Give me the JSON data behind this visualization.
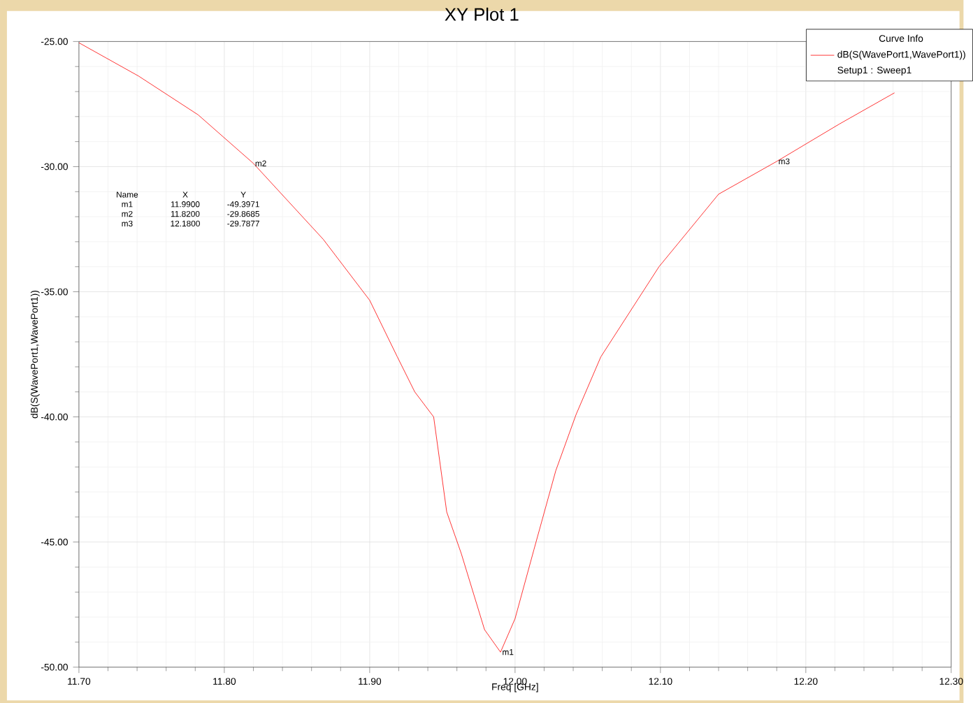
{
  "chart_data": {
    "type": "line",
    "title": "XY Plot 1",
    "xlabel": "Freq [GHz]",
    "ylabel": "dB(S(WavePort1,WavePort1))",
    "legend_title": "Curve Info",
    "series": [
      {
        "name": "dB(S(WavePort1,WavePort1))",
        "color": "#ff0000",
        "x": [
          11.7,
          11.741,
          11.782,
          11.82,
          11.868,
          11.9,
          11.919,
          11.931,
          11.944,
          11.953,
          11.963,
          11.979,
          11.99,
          12.0,
          12.013,
          12.028,
          12.042,
          12.059,
          12.099,
          12.14,
          12.18,
          12.223,
          12.261
        ],
        "values": [
          -25.05,
          -26.38,
          -27.93,
          -29.87,
          -32.9,
          -35.34,
          -37.6,
          -39.0,
          -40.0,
          -43.8,
          -45.46,
          -48.5,
          -49.4,
          -48.06,
          -45.3,
          -42.15,
          -39.9,
          -37.6,
          -34.0,
          -31.1,
          -29.79,
          -28.3,
          -27.05
        ]
      }
    ],
    "xlim": [
      11.7,
      12.3
    ],
    "ylim": [
      -50,
      -25
    ],
    "xticks": [
      {
        "value": 11.7,
        "label": "11.70"
      },
      {
        "value": 11.8,
        "label": "11.80"
      },
      {
        "value": 11.9,
        "label": "11.90"
      },
      {
        "value": 12.0,
        "label": "12.00"
      },
      {
        "value": 12.1,
        "label": "12.10"
      },
      {
        "value": 12.2,
        "label": "12.20"
      },
      {
        "value": 12.3,
        "label": "12.30"
      }
    ],
    "yticks": [
      {
        "value": -50,
        "label": "-50.00"
      },
      {
        "value": -45,
        "label": "-45.00"
      },
      {
        "value": -40,
        "label": "-40.00"
      },
      {
        "value": -35,
        "label": "-35.00"
      },
      {
        "value": -30,
        "label": "-30.00"
      },
      {
        "value": -25,
        "label": "-25.00"
      }
    ],
    "grid": true,
    "legend": "top right",
    "marker": "none",
    "line_style": "solid",
    "annotations": [
      {
        "text": "m1",
        "x": 11.99,
        "y": -49.3971
      },
      {
        "text": "m2",
        "x": 11.82,
        "y": -29.8685
      },
      {
        "text": "m3",
        "x": 12.18,
        "y": -29.7877
      },
      "Setup1 : Sweep1",
      "Name",
      "X",
      "Y",
      "m1",
      "11.9900",
      "-49.3971",
      "m2",
      "11.8200",
      "-29.8685",
      "m3",
      "12.1800",
      "-29.7877"
    ]
  }
}
